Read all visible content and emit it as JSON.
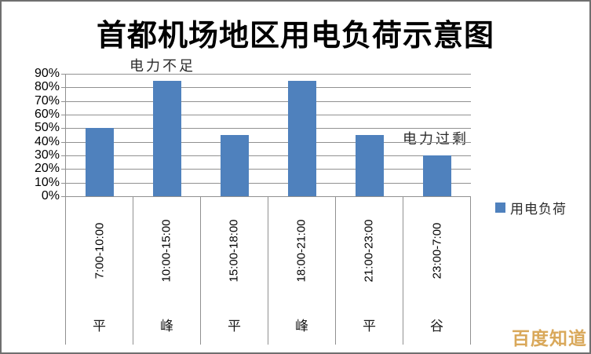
{
  "chart_data": {
    "type": "bar",
    "title": "首都机场地区用电负荷示意图",
    "categories": [
      "7:00-10:00",
      "10:00-15:00",
      "15:00-18:00",
      "18:00-21:00",
      "21:00-23:00",
      "23:00-7:00"
    ],
    "category_levels": [
      "平",
      "峰",
      "平",
      "峰",
      "平",
      "谷"
    ],
    "series": [
      {
        "name": "用电负荷",
        "values": [
          50,
          85,
          45,
          85,
          45,
          30
        ]
      }
    ],
    "xlabel": "",
    "ylabel": "",
    "ylim": [
      0,
      90
    ],
    "ytick_step": 10,
    "ytick_format": "percent",
    "grid": true,
    "legend_position": "right",
    "annotations": [
      {
        "text": "电力不足",
        "x_category": "10:00-15:00",
        "placement": "above plot, over peak bar"
      },
      {
        "text": "电力过剩",
        "x_category": "23:00-7:00",
        "placement": "above valley bar, ~45% level"
      }
    ],
    "colors": {
      "bar": "#4F81BD",
      "gridline": "#919191",
      "text": "#000000"
    }
  },
  "legend": {
    "items": [
      {
        "label": "用电负荷",
        "color": "#4F81BD"
      }
    ]
  },
  "watermark": {
    "text": "百度知道",
    "color": "#D9A85A"
  }
}
